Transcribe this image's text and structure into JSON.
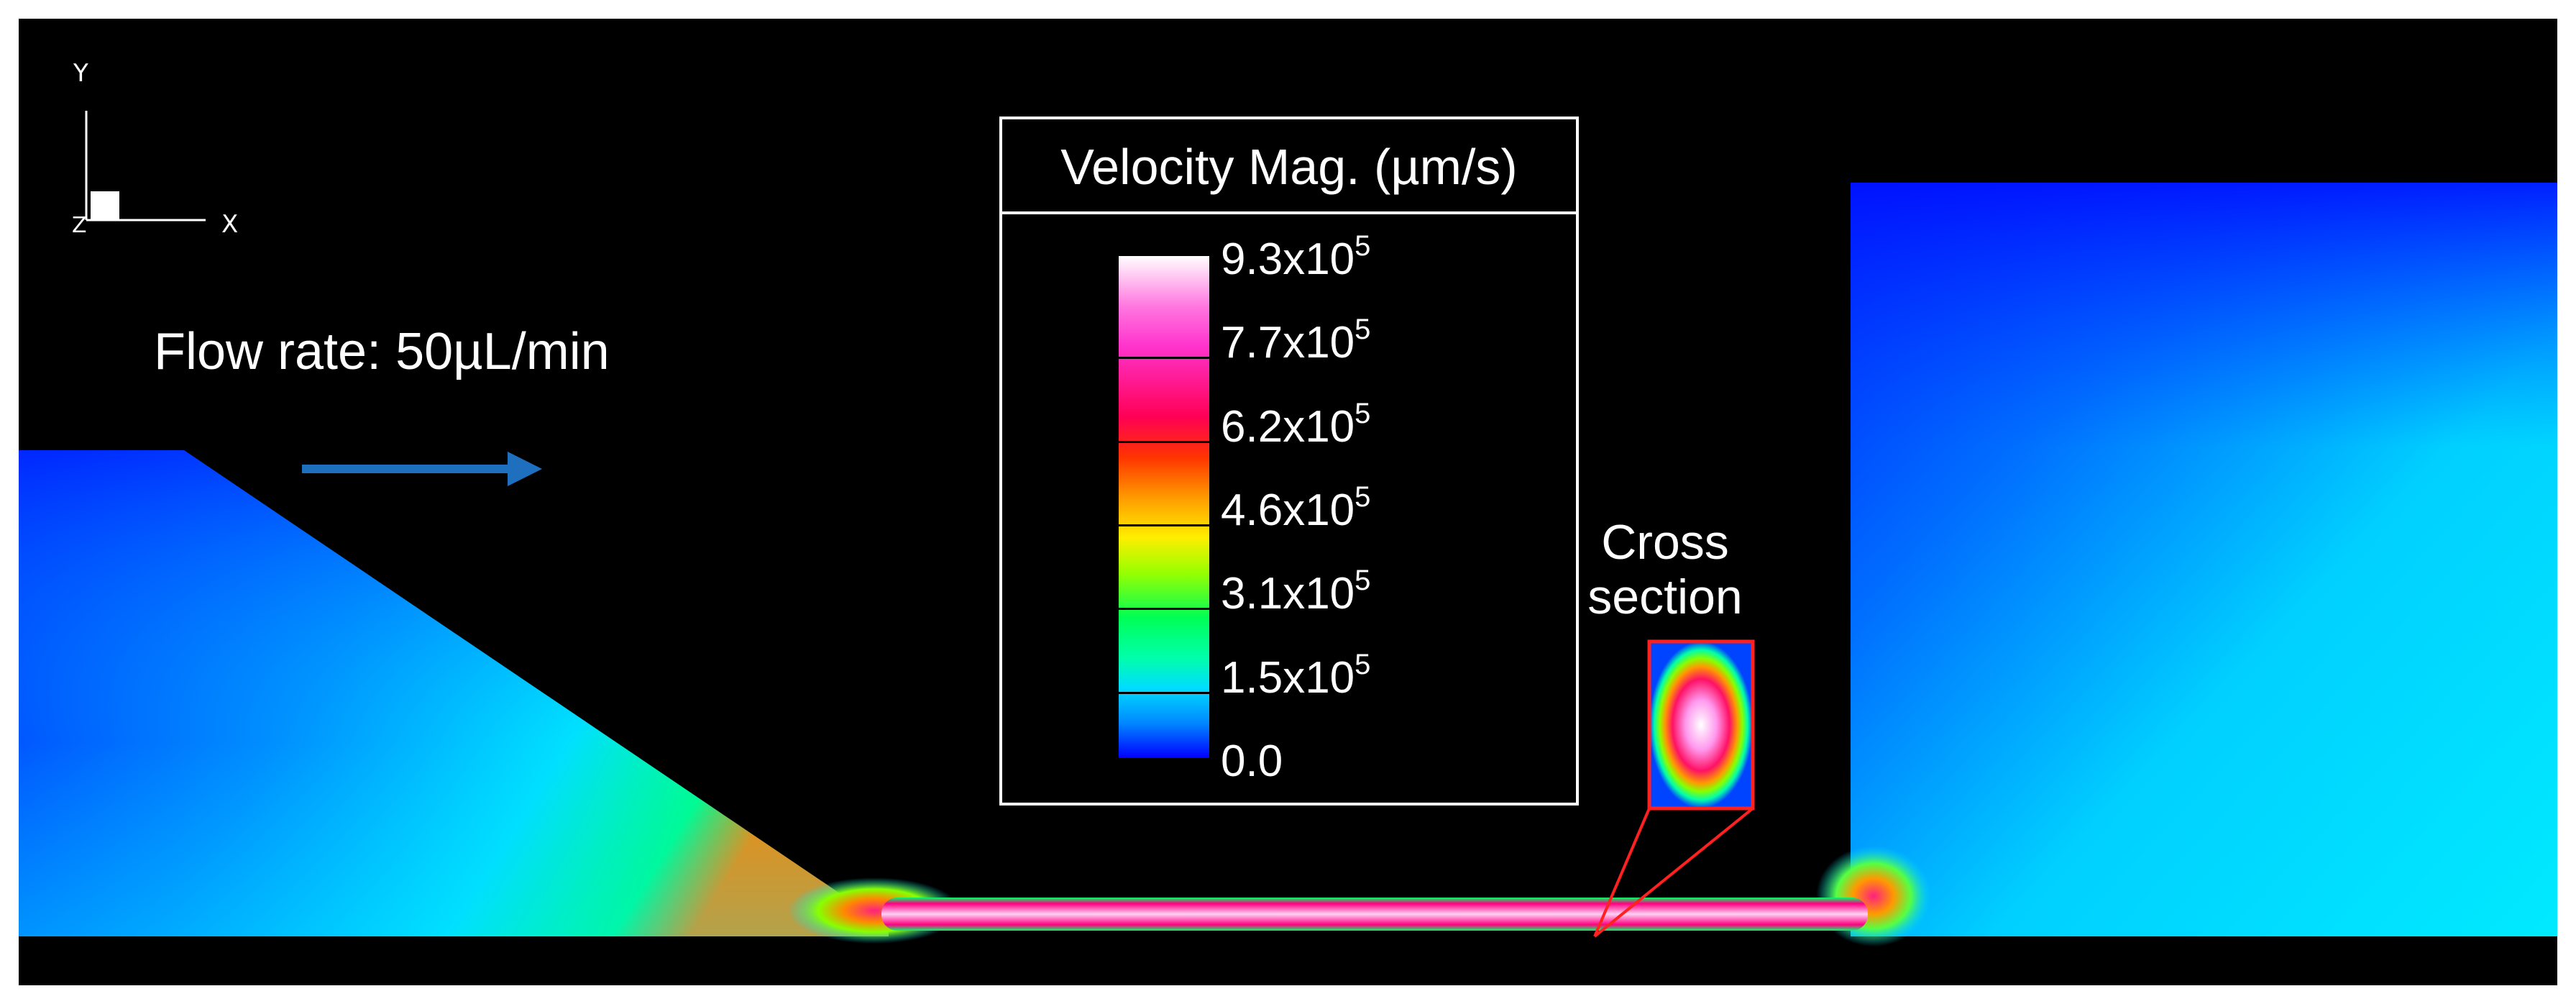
{
  "flow_rate": "Flow rate: 50µL/min",
  "axes": {
    "x": "X",
    "y": "Y",
    "z": "Z"
  },
  "legend": {
    "title": "Velocity Mag. (µm/s)",
    "ticks": [
      {
        "mantissa": "9.3x10",
        "exp": "5"
      },
      {
        "mantissa": "7.7x10",
        "exp": "5"
      },
      {
        "mantissa": "6.2x10",
        "exp": "5"
      },
      {
        "mantissa": "4.6x10",
        "exp": "5"
      },
      {
        "mantissa": "3.1x10",
        "exp": "5"
      },
      {
        "mantissa": "1.5x10",
        "exp": "5"
      },
      {
        "mantissa": "0.0",
        "exp": ""
      }
    ],
    "max_value": 930000,
    "min_value": 0,
    "colormap": [
      "#0000ff",
      "#00ddff",
      "#00ff55",
      "#ffee00",
      "#ff9900",
      "#ff0055",
      "#ff33cc",
      "#ffffff"
    ]
  },
  "cross_section": {
    "label": "Cross section",
    "border_color": "#ff2020"
  },
  "colors": {
    "background": "#000000",
    "flow_arrow": "#1f6fbf",
    "low_velocity": "#0050ff",
    "mid_velocity": "#00e5ff",
    "high_velocity": "#ff66dd"
  }
}
